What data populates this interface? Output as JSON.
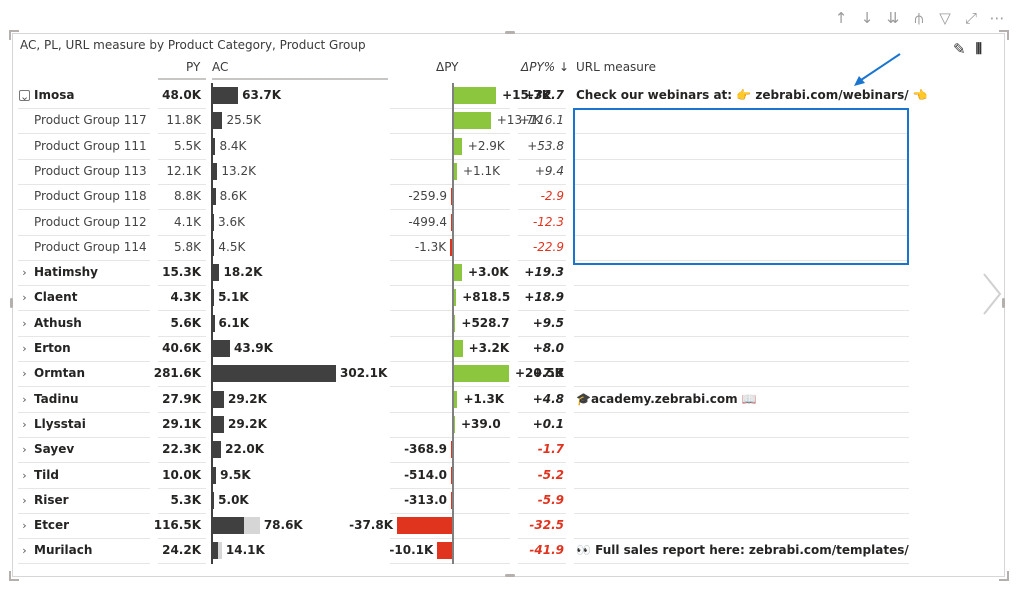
{
  "visual": {
    "title": "AC, PL, URL measure by Product Category, Product Group",
    "headers": {
      "py": "PY",
      "ac": "AC",
      "dpy": "ΔPY",
      "dpypct": "ΔPY% ↓",
      "url": "URL measure"
    }
  },
  "toolbar": {
    "icons": [
      "arrow-up-icon",
      "arrow-down-icon",
      "double-arrow-down-icon",
      "expand-hierarchy-icon",
      "filter-icon",
      "focus-mode-icon",
      "more-options-icon"
    ]
  },
  "colors": {
    "positive": "#8cc63f",
    "negative": "#e0341f",
    "bar": "#404040",
    "py_bar": "#d6d6d6",
    "selection": "#1a75cf"
  },
  "rows": [
    {
      "name": "Imosa",
      "py": "48.0K",
      "ac": "63.7K",
      "dpy": "+15.7K",
      "pct": "+32.7",
      "url": "Check our webinars at: 👉 zebrabi.com/webinars/ 👈",
      "bold": true,
      "expanded": true,
      "ac_v": 63.7,
      "py_v": 48.0,
      "dpy_v": 15.7
    },
    {
      "name": "Product Group 117",
      "py": "11.8K",
      "ac": "25.5K",
      "dpy": "+13.7K",
      "pct": "+116.1",
      "url": "",
      "bold": false,
      "child": true,
      "ac_v": 25.5,
      "py_v": 11.8,
      "dpy_v": 13.7
    },
    {
      "name": "Product Group 111",
      "py": "5.5K",
      "ac": "8.4K",
      "dpy": "+2.9K",
      "pct": "+53.8",
      "url": "",
      "bold": false,
      "child": true,
      "ac_v": 8.4,
      "py_v": 5.5,
      "dpy_v": 2.9
    },
    {
      "name": "Product Group 113",
      "py": "12.1K",
      "ac": "13.2K",
      "dpy": "+1.1K",
      "pct": "+9.4",
      "url": "",
      "bold": false,
      "child": true,
      "ac_v": 13.2,
      "py_v": 12.1,
      "dpy_v": 1.1
    },
    {
      "name": "Product Group 118",
      "py": "8.8K",
      "ac": "8.6K",
      "dpy": "-259.9",
      "pct": "-2.9",
      "url": "",
      "bold": false,
      "child": true,
      "ac_v": 8.6,
      "py_v": 8.8,
      "dpy_v": -0.2599
    },
    {
      "name": "Product Group 112",
      "py": "4.1K",
      "ac": "3.6K",
      "dpy": "-499.4",
      "pct": "-12.3",
      "url": "",
      "bold": false,
      "child": true,
      "ac_v": 3.6,
      "py_v": 4.1,
      "dpy_v": -0.4994
    },
    {
      "name": "Product Group 114",
      "py": "5.8K",
      "ac": "4.5K",
      "dpy": "-1.3K",
      "pct": "-22.9",
      "url": "",
      "bold": false,
      "child": true,
      "ac_v": 4.5,
      "py_v": 5.8,
      "dpy_v": -1.3
    },
    {
      "name": "Hatimshy",
      "py": "15.3K",
      "ac": "18.2K",
      "dpy": "+3.0K",
      "pct": "+19.3",
      "url": "",
      "bold": true,
      "ac_v": 18.2,
      "py_v": 15.3,
      "dpy_v": 3.0
    },
    {
      "name": "Claent",
      "py": "4.3K",
      "ac": "5.1K",
      "dpy": "+818.5",
      "pct": "+18.9",
      "url": "",
      "bold": true,
      "ac_v": 5.1,
      "py_v": 4.3,
      "dpy_v": 0.8185
    },
    {
      "name": "Athush",
      "py": "5.6K",
      "ac": "6.1K",
      "dpy": "+528.7",
      "pct": "+9.5",
      "url": "",
      "bold": true,
      "ac_v": 6.1,
      "py_v": 5.6,
      "dpy_v": 0.5287
    },
    {
      "name": "Erton",
      "py": "40.6K",
      "ac": "43.9K",
      "dpy": "+3.2K",
      "pct": "+8.0",
      "url": "",
      "bold": true,
      "ac_v": 43.9,
      "py_v": 40.6,
      "dpy_v": 3.2
    },
    {
      "name": "Ormtan",
      "py": "281.6K",
      "ac": "302.1K",
      "dpy": "+20.5K",
      "pct": "+7.3",
      "url": "",
      "bold": true,
      "ac_v": 302.1,
      "py_v": 281.6,
      "dpy_v": 20.5
    },
    {
      "name": "Tadinu",
      "py": "27.9K",
      "ac": "29.2K",
      "dpy": "+1.3K",
      "pct": "+4.8",
      "url": "🎓academy.zebrabi.com 📖",
      "bold": true,
      "ac_v": 29.2,
      "py_v": 27.9,
      "dpy_v": 1.3
    },
    {
      "name": "Llysstai",
      "py": "29.1K",
      "ac": "29.2K",
      "dpy": "+39.0",
      "pct": "+0.1",
      "url": "",
      "bold": true,
      "ac_v": 29.2,
      "py_v": 29.1,
      "dpy_v": 0.039
    },
    {
      "name": "Sayev",
      "py": "22.3K",
      "ac": "22.0K",
      "dpy": "-368.9",
      "pct": "-1.7",
      "url": "",
      "bold": true,
      "ac_v": 22.0,
      "py_v": 22.3,
      "dpy_v": -0.3689
    },
    {
      "name": "Tild",
      "py": "10.0K",
      "ac": "9.5K",
      "dpy": "-514.0",
      "pct": "-5.2",
      "url": "",
      "bold": true,
      "ac_v": 9.5,
      "py_v": 10.0,
      "dpy_v": -0.514
    },
    {
      "name": "Riser",
      "py": "5.3K",
      "ac": "5.0K",
      "dpy": "-313.0",
      "pct": "-5.9",
      "url": "",
      "bold": true,
      "ac_v": 5.0,
      "py_v": 5.3,
      "dpy_v": -0.313
    },
    {
      "name": "Etcer",
      "py": "116.5K",
      "ac": "78.6K",
      "dpy": "-37.8K",
      "pct": "-32.5",
      "url": "",
      "bold": true,
      "ac_v": 78.6,
      "py_v": 116.5,
      "dpy_v": -37.8
    },
    {
      "name": "Murilach",
      "py": "24.2K",
      "ac": "14.1K",
      "dpy": "-10.1K",
      "pct": "-41.9",
      "url": "👀 Full sales report here: zebrabi.com/templates/",
      "bold": true,
      "ac_v": 14.1,
      "py_v": 24.2,
      "dpy_v": -10.1
    }
  ]
}
